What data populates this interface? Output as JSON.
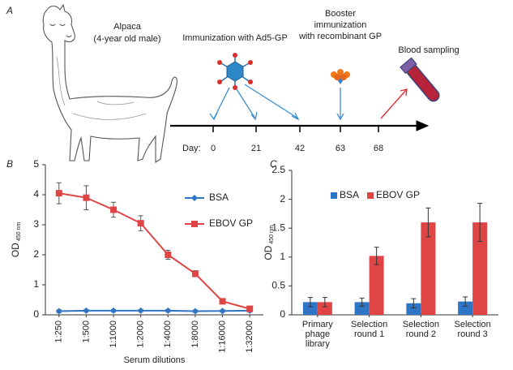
{
  "panel_a": {
    "label": "A",
    "animal": "Alpaca",
    "animal_note": "(4-year old male)",
    "immunization": "Immunization with Ad5-GP",
    "booster": [
      "Booster",
      "immunization",
      "with recombinant GP"
    ],
    "sampling": "Blood sampling",
    "day_label": "Day:",
    "days": [
      0,
      21,
      42,
      63,
      68
    ]
  },
  "chart_data": [
    {
      "type": "line",
      "panel": "B",
      "ylabel": "OD",
      "ylabel_sub": "450 nm",
      "xlabel": "Serum dilutions",
      "categories": [
        "1:250",
        "1:500",
        "1:1000",
        "1:2000",
        "1:4000",
        "1:8000",
        "1:16000",
        "1:32000"
      ],
      "ylim": [
        0,
        5
      ],
      "yticks": [
        0,
        1,
        2,
        3,
        4,
        5
      ],
      "legend": "right",
      "series": [
        {
          "name": "BSA",
          "color": "#2e75c6",
          "values": [
            0.12,
            0.14,
            0.14,
            0.14,
            0.14,
            0.12,
            0.13,
            0.14
          ],
          "errors": [
            0.05,
            0.04,
            0.04,
            0.04,
            0.04,
            0.04,
            0.04,
            0.04
          ]
        },
        {
          "name": "EBOV GP",
          "color": "#e04545",
          "values": [
            4.05,
            3.9,
            3.5,
            3.05,
            2.0,
            1.37,
            0.45,
            0.2
          ],
          "errors": [
            0.35,
            0.4,
            0.25,
            0.25,
            0.15,
            0.1,
            0.05,
            0.05
          ]
        }
      ]
    },
    {
      "type": "bar",
      "panel": "C",
      "ylabel": "OD",
      "ylabel_sub": "450 nm",
      "categories": [
        [
          "Primary",
          "phage",
          "library"
        ],
        [
          "Selection",
          "round 1"
        ],
        [
          "Selection",
          "round 2"
        ],
        [
          "Selection",
          "round 3"
        ]
      ],
      "ylim": [
        0,
        2.5
      ],
      "yticks": [
        0,
        0.5,
        1,
        1.5,
        2,
        2.5
      ],
      "legend": "top",
      "series": [
        {
          "name": "BSA",
          "color": "#2e75c6",
          "values": [
            0.22,
            0.22,
            0.2,
            0.23
          ],
          "errors": [
            0.08,
            0.07,
            0.08,
            0.08
          ]
        },
        {
          "name": "EBOV GP",
          "color": "#e04545",
          "values": [
            0.22,
            1.02,
            1.6,
            1.6
          ],
          "errors": [
            0.08,
            0.15,
            0.25,
            0.33
          ]
        }
      ]
    }
  ]
}
